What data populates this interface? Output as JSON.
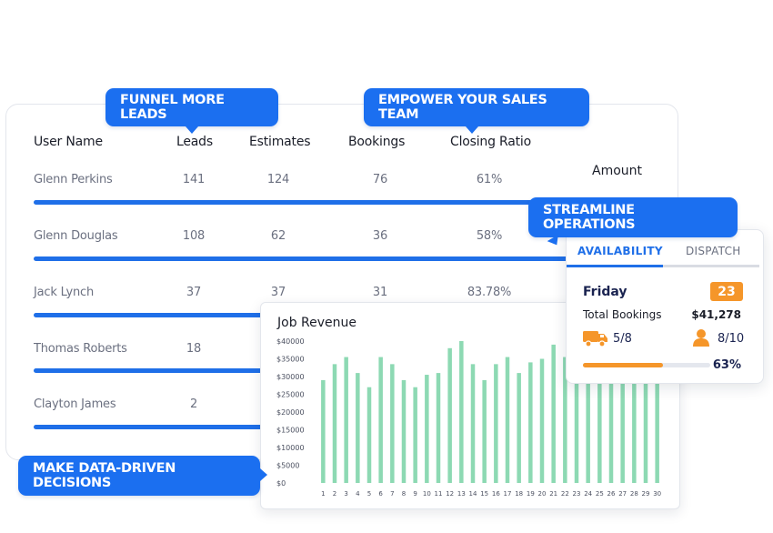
{
  "table": {
    "headers": {
      "user_name": "User Name",
      "leads": "Leads",
      "estimates": "Estimates",
      "bookings": "Bookings",
      "closing_ratio": "Closing Ratio",
      "amount": "Amount"
    },
    "rows": [
      {
        "name": "Glenn Perkins",
        "leads": "141",
        "estimates": "124",
        "bookings": "76",
        "ratio": "61%"
      },
      {
        "name": "Glenn Douglas",
        "leads": "108",
        "estimates": "62",
        "bookings": "36",
        "ratio": "58%"
      },
      {
        "name": "Jack Lynch",
        "leads": "37",
        "estimates": "37",
        "bookings": "31",
        "ratio": "83.78%"
      },
      {
        "name": "Thomas Roberts",
        "leads": "18",
        "estimates": "",
        "bookings": "",
        "ratio": ""
      },
      {
        "name": "Clayton James",
        "leads": "2",
        "estimates": "",
        "bookings": "",
        "ratio": ""
      }
    ]
  },
  "callouts": {
    "funnel": "FUNNEL MORE LEADS",
    "empower": "EMPOWER YOUR SALES TEAM",
    "streamline": "STREAMLINE OPERATIONS",
    "datadriven": "MAKE DATA-DRIVEN DECISIONS"
  },
  "availability": {
    "tabs": [
      "AVAILABILITY",
      "DISPATCH"
    ],
    "day": "Friday",
    "day_number": "23",
    "total_bookings_label": "Total Bookings",
    "total_bookings_value": "$41,278",
    "trucks": "5/8",
    "staff": "8/10",
    "utilization": 0.63,
    "utilization_label": "63%",
    "accent": "#f5962a"
  },
  "chart_data": {
    "type": "bar",
    "title": "Job Revenue",
    "categories": [
      "1",
      "2",
      "3",
      "4",
      "5",
      "6",
      "7",
      "8",
      "9",
      "10",
      "11",
      "12",
      "13",
      "14",
      "15",
      "16",
      "17",
      "18",
      "19",
      "20",
      "21",
      "22",
      "23",
      "24",
      "25",
      "26",
      "27",
      "28",
      "29",
      "30"
    ],
    "values": [
      29000,
      33500,
      35500,
      31000,
      27000,
      35500,
      33500,
      29000,
      27000,
      30500,
      31000,
      38000,
      40000,
      33500,
      29000,
      33500,
      35500,
      31000,
      34000,
      35000,
      39000,
      35500,
      40000,
      37000,
      36000,
      35000,
      34500,
      35000,
      33000,
      34000
    ],
    "y_ticks": [
      "$0",
      "$5000",
      "$10000",
      "$15000",
      "$20000",
      "$25000",
      "$30000",
      "$35000",
      "$40000"
    ],
    "ylim": [
      0,
      40000
    ],
    "bar_color": "#8dd9b3"
  }
}
